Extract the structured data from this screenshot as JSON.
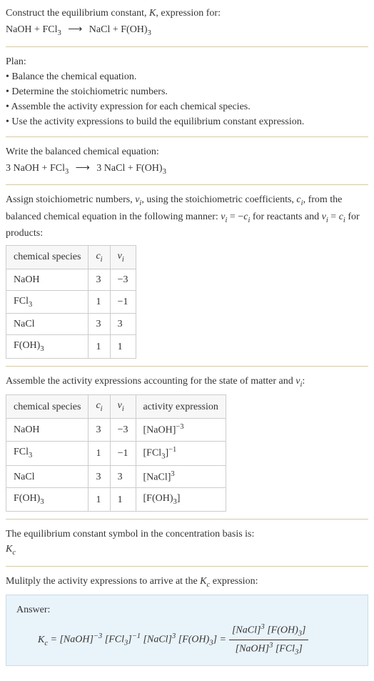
{
  "header": {
    "line1": "Construct the equilibrium constant, <span class='ital'>K</span>, expression for:",
    "eq": "NaOH + FCl<span class='sub'>3</span> <span class='arrow'>⟶</span> NaCl + F(OH)<span class='sub'>3</span>"
  },
  "plan": {
    "title": "Plan:",
    "items": [
      "• Balance the chemical equation.",
      "• Determine the stoichiometric numbers.",
      "• Assemble the activity expression for each chemical species.",
      "• Use the activity expressions to build the equilibrium constant expression."
    ]
  },
  "balanced": {
    "title": "Write the balanced chemical equation:",
    "eq": "3 NaOH + FCl<span class='sub'>3</span> <span class='arrow'>⟶</span> 3 NaCl + F(OH)<span class='sub'>3</span>"
  },
  "stoich": {
    "intro": "Assign stoichiometric numbers, <span class='ital'>ν<span class='sub'>i</span></span>, using the stoichiometric coefficients, <span class='ital'>c<span class='sub'>i</span></span>, from the balanced chemical equation in the following manner: <span class='ital'>ν<span class='sub'>i</span></span> = −<span class='ital'>c<span class='sub'>i</span></span> for reactants and <span class='ital'>ν<span class='sub'>i</span></span> = <span class='ital'>c<span class='sub'>i</span></span> for products:",
    "headers": [
      "chemical species",
      "<span class='ital'>c<span class='sub'>i</span></span>",
      "<span class='ital'>ν<span class='sub'>i</span></span>"
    ],
    "rows": [
      [
        "NaOH",
        "3",
        "−3"
      ],
      [
        "FCl<span class='sub'>3</span>",
        "1",
        "−1"
      ],
      [
        "NaCl",
        "3",
        "3"
      ],
      [
        "F(OH)<span class='sub'>3</span>",
        "1",
        "1"
      ]
    ]
  },
  "activity": {
    "intro": "Assemble the activity expressions accounting for the state of matter and <span class='ital'>ν<span class='sub'>i</span></span>:",
    "headers": [
      "chemical species",
      "<span class='ital'>c<span class='sub'>i</span></span>",
      "<span class='ital'>ν<span class='sub'>i</span></span>",
      "activity expression"
    ],
    "rows": [
      [
        "NaOH",
        "3",
        "−3",
        "[NaOH]<span class='sup'>−3</span>"
      ],
      [
        "FCl<span class='sub'>3</span>",
        "1",
        "−1",
        "[FCl<span class='sub'>3</span>]<span class='sup'>−1</span>"
      ],
      [
        "NaCl",
        "3",
        "3",
        "[NaCl]<span class='sup'>3</span>"
      ],
      [
        "F(OH)<span class='sub'>3</span>",
        "1",
        "1",
        "[F(OH)<span class='sub'>3</span>]"
      ]
    ]
  },
  "symbol": {
    "line1": "The equilibrium constant symbol in the concentration basis is:",
    "line2": "<span class='ital'>K<span class='sub'>c</span></span>"
  },
  "multiply": {
    "line": "Mulitply the activity expressions to arrive at the <span class='ital'>K<span class='sub'>c</span></span> expression:"
  },
  "answer": {
    "label": "Answer:",
    "lhs": "<span class='ital'>K<span class='sub'>c</span></span> = [NaOH]<span class='sup'>−3</span> [FCl<span class='sub'>3</span>]<span class='sup'>−1</span> [NaCl]<span class='sup'>3</span> [F(OH)<span class='sub'>3</span>] =",
    "num": "[NaCl]<span class='sup'>3</span> [F(OH)<span class='sub'>3</span>]",
    "den": "[NaOH]<span class='sup'>3</span> [FCl<span class='sub'>3</span>]"
  }
}
